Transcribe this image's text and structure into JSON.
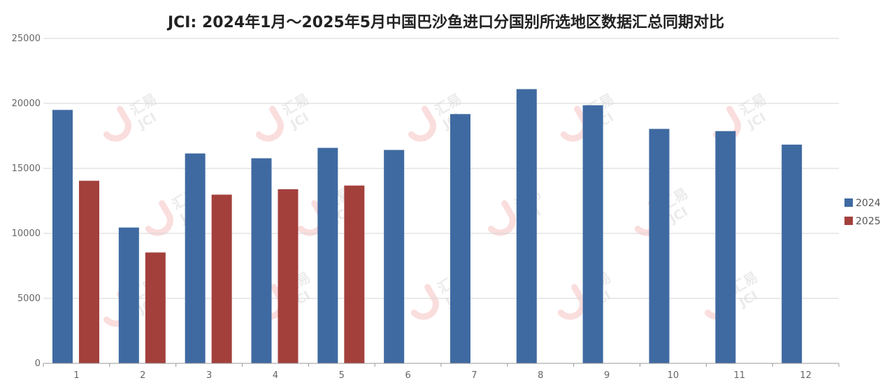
{
  "chart_data": {
    "type": "bar",
    "title": "JCI: 2024年1月～2025年5月中国巴沙鱼进口分国别所选地区数据汇总同期对比",
    "categories": [
      "1",
      "2",
      "3",
      "4",
      "5",
      "6",
      "7",
      "8",
      "9",
      "10",
      "11",
      "12"
    ],
    "series": [
      {
        "name": "2024",
        "color": "#3f6aa1",
        "values": [
          19500,
          10450,
          16150,
          15780,
          16580,
          16420,
          19180,
          21100,
          19860,
          18040,
          17870,
          16830
        ]
      },
      {
        "name": "2025",
        "color": "#a3403c",
        "values": [
          14050,
          8530,
          12980,
          13400,
          13680,
          null,
          null,
          null,
          null,
          null,
          null,
          null
        ]
      }
    ],
    "ylim": [
      0,
      25000
    ],
    "yticks": [
      "0",
      "5000",
      "10000",
      "15000",
      "20000",
      "25000"
    ],
    "grid": true,
    "legend_position": "right",
    "xlabel": "",
    "ylabel": ""
  },
  "watermark": {
    "text_top": "汇易",
    "text_bottom": "JCI"
  }
}
